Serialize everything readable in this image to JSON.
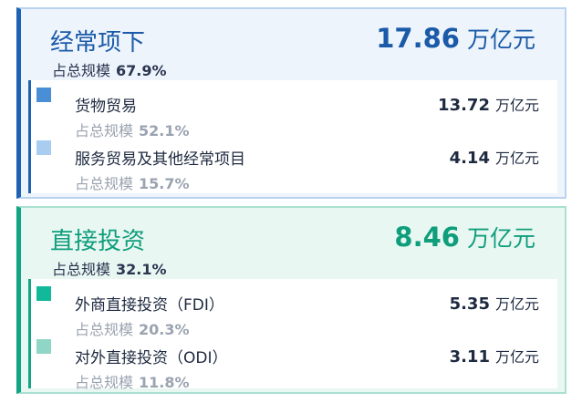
{
  "panels": [
    {
      "title": "经常项下",
      "value": "17.86",
      "unit": "万亿元",
      "share_label": "占总规模",
      "share": "67.9%",
      "items": [
        {
          "name": "货物贸易",
          "value": "13.72",
          "unit": "万亿元",
          "share_label": "占总规模",
          "share": "52.1%"
        },
        {
          "name": "服务贸易及其他经常项目",
          "value": "4.14",
          "unit": "万亿元",
          "share_label": "占总规模",
          "share": "15.7%"
        }
      ]
    },
    {
      "title": "直接投资",
      "value": "8.46",
      "unit": "万亿元",
      "share_label": "占总规模",
      "share": "32.1%",
      "items": [
        {
          "name": "外商直接投资（FDI）",
          "value": "5.35",
          "unit": "万亿元",
          "share_label": "占总规模",
          "share": "20.3%"
        },
        {
          "name": "对外直接投资（ODI）",
          "value": "3.11",
          "unit": "万亿元",
          "share_label": "占总规模",
          "share": "11.8%"
        }
      ]
    }
  ]
}
